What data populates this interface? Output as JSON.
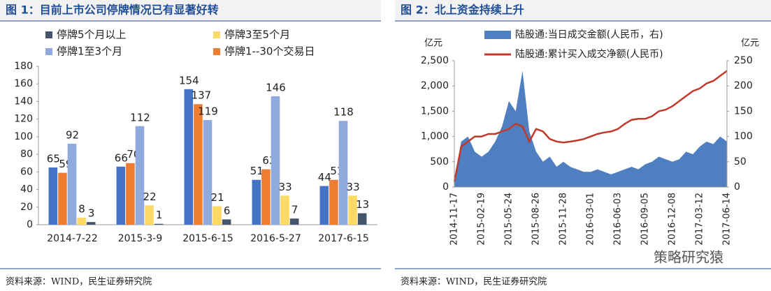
{
  "chart_data": [
    {
      "type": "bar",
      "title": "图 1：目前上市公司停牌情况已有显著好转",
      "source": "资料来源：WIND，民生证券研究院",
      "categories": [
        "2014-7-22",
        "2015-3-9",
        "2015-6-15",
        "2016-5-27",
        "2017-6-15"
      ],
      "series": [
        {
          "color": "#4472c4",
          "values": [
            65,
            66,
            154,
            51,
            44
          ]
        },
        {
          "name": "停牌1--30个交易日",
          "color": "#ed7d31",
          "values": [
            59,
            70,
            137,
            63,
            51
          ]
        },
        {
          "name": "停牌1至3个月",
          "color": "#8faadc",
          "values": [
            92,
            112,
            119,
            146,
            118
          ]
        },
        {
          "name": "停牌3至5个月",
          "color": "#ffd966",
          "values": [
            8,
            22,
            21,
            33,
            33
          ]
        },
        {
          "name": "停牌5个月以上",
          "color": "#44546a",
          "values": [
            3,
            1,
            6,
            7,
            13
          ]
        }
      ],
      "legend_order": [
        4,
        3,
        2,
        1
      ],
      "ylim": [
        0,
        180
      ],
      "yticks": [
        0,
        20,
        40,
        60,
        80,
        100,
        120,
        140,
        160,
        180
      ],
      "data_labels": true
    },
    {
      "type": "combo",
      "title": "图 2：北上资金持续上升",
      "source": "资料来源：WIND，民生证券研究院",
      "watermark": "策略研究猿",
      "y_unit": "亿元",
      "y2_unit": "亿元",
      "categories": [
        "2014-11-17",
        null,
        null,
        null,
        "2015-02-19",
        null,
        null,
        null,
        "2015-05-24",
        null,
        null,
        null,
        "2015-08-26",
        null,
        null,
        null,
        "2015-11-28",
        null,
        null,
        null,
        "2016-03-01",
        null,
        null,
        null,
        "2016-06-03",
        null,
        null,
        null,
        "2016-09-05",
        null,
        null,
        null,
        "2016-12-08",
        null,
        null,
        null,
        "2017-03-12",
        null,
        null,
        null,
        "2017-06-14"
      ],
      "series": [
        {
          "name": "陆股通:当日成交金额(人民币，右)",
          "type": "area",
          "axis": "y2",
          "color": "#4f7fc0",
          "values": [
            10,
            90,
            100,
            70,
            60,
            70,
            90,
            120,
            170,
            150,
            230,
            110,
            70,
            50,
            60,
            40,
            50,
            40,
            35,
            30,
            30,
            35,
            30,
            25,
            30,
            35,
            40,
            35,
            45,
            50,
            60,
            55,
            50,
            55,
            70,
            65,
            80,
            90,
            85,
            100,
            90
          ]
        },
        {
          "name": "陆股通:累计买入成交净额(人民币)",
          "type": "line",
          "axis": "y",
          "color": "#c0392b",
          "values": [
            100,
            800,
            900,
            1000,
            1000,
            1050,
            1050,
            1100,
            1150,
            1250,
            1200,
            900,
            1150,
            1100,
            950,
            900,
            880,
            900,
            920,
            950,
            1000,
            1050,
            1080,
            1100,
            1150,
            1250,
            1330,
            1350,
            1350,
            1400,
            1500,
            1530,
            1600,
            1700,
            1800,
            1900,
            1950,
            2050,
            2100,
            2200,
            2300
          ]
        }
      ],
      "ylim": [
        0,
        2500
      ],
      "yticks": [
        0,
        500,
        {
          "value": 1000,
          "label": "1,000"
        },
        {
          "value": 1500,
          "label": "1,500"
        },
        {
          "value": 2000,
          "label": "2,000"
        },
        {
          "value": 2500,
          "label": "2,500"
        }
      ],
      "y2lim": [
        0,
        250
      ],
      "y2ticks": [
        0,
        50,
        100,
        150,
        200,
        250
      ]
    }
  ]
}
